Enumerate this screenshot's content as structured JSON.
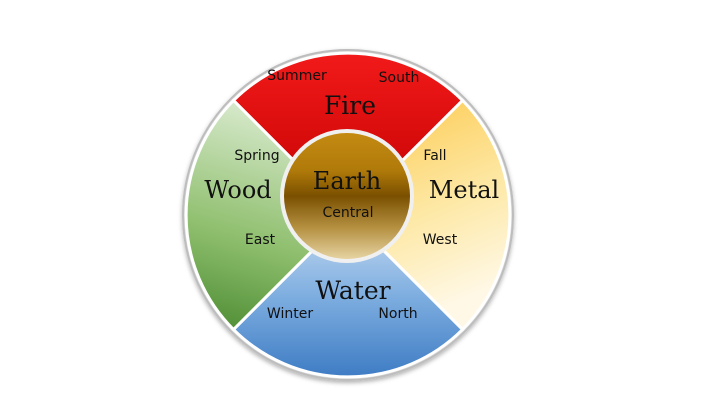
{
  "elements": {
    "fire": {
      "name": "Fire",
      "season": "Summer",
      "direction": "South",
      "color": "#e8141b"
    },
    "metal": {
      "name": "Metal",
      "season": "Fall",
      "direction": "West",
      "color": "#fdd96a"
    },
    "water": {
      "name": "Water",
      "season": "Winter",
      "direction": "North",
      "color": "#5b93cf"
    },
    "wood": {
      "name": "Wood",
      "season": "Spring",
      "direction": "East",
      "color": "#6aa84f"
    },
    "earth": {
      "name": "Earth",
      "direction": "Central",
      "color": "#b8860b"
    }
  }
}
